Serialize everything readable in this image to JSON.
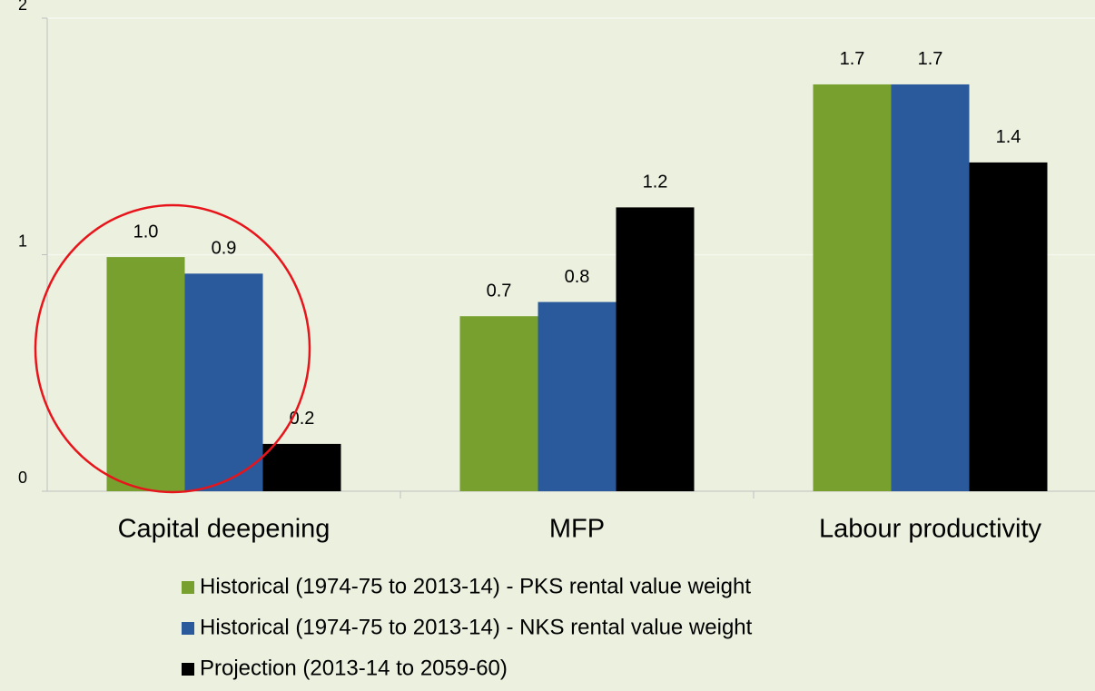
{
  "chart_data": {
    "type": "bar",
    "categories": [
      "Capital deepening",
      "MFP",
      "Labour productivity"
    ],
    "series": [
      {
        "name": "Historical (1974-75 to 2013-14) - PKS rental value weight",
        "color": "#77a02f",
        "values": [
          0.99,
          0.74,
          1.72
        ],
        "value_labels": [
          "1.0",
          "0.7",
          "1.7"
        ]
      },
      {
        "name": "Historical (1974-75 to 2013-14) - NKS rental value weight",
        "color": "#2a5a9b",
        "values": [
          0.92,
          0.8,
          1.72
        ],
        "value_labels": [
          "0.9",
          "0.8",
          "1.7"
        ]
      },
      {
        "name": "Projection (2013-14 to 2059-60)",
        "color": "#000000",
        "values": [
          0.2,
          1.2,
          1.39
        ],
        "value_labels": [
          "0.2",
          "1.2",
          "1.4"
        ]
      }
    ],
    "ylim": [
      0,
      2
    ],
    "yticks": [
      0,
      1,
      2
    ],
    "grid": true
  }
}
